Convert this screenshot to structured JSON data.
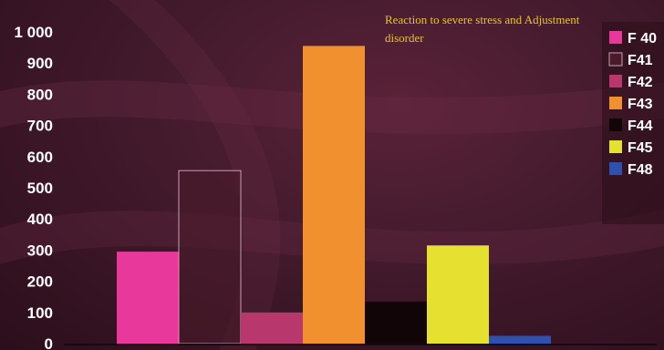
{
  "chart_data": {
    "type": "bar",
    "title": "",
    "xlabel": "",
    "ylabel": "",
    "ylim": [
      0,
      1000
    ],
    "yticks": [
      "0",
      "100",
      "200",
      "300",
      "400",
      "500",
      "600",
      "700",
      "800",
      "900",
      "1 000"
    ],
    "categories": [
      "F 40",
      "F41",
      "F42",
      "F43",
      "F44",
      "F45",
      "F48"
    ],
    "values": [
      295,
      555,
      100,
      955,
      135,
      315,
      25
    ],
    "colors": [
      "#e8389c",
      "#4a1a2a",
      "#b8386e",
      "#f0902e",
      "#120508",
      "#e6e030",
      "#3050b0"
    ],
    "outlined": [
      false,
      true,
      false,
      false,
      false,
      false,
      false
    ],
    "legend": {
      "position": "right",
      "entries": [
        "F 40",
        "F41",
        "F42",
        "F43",
        "F44",
        "F45",
        "F48"
      ]
    },
    "annotation": "Reaction to severe stress and Adjustment disorder",
    "grid": false
  }
}
